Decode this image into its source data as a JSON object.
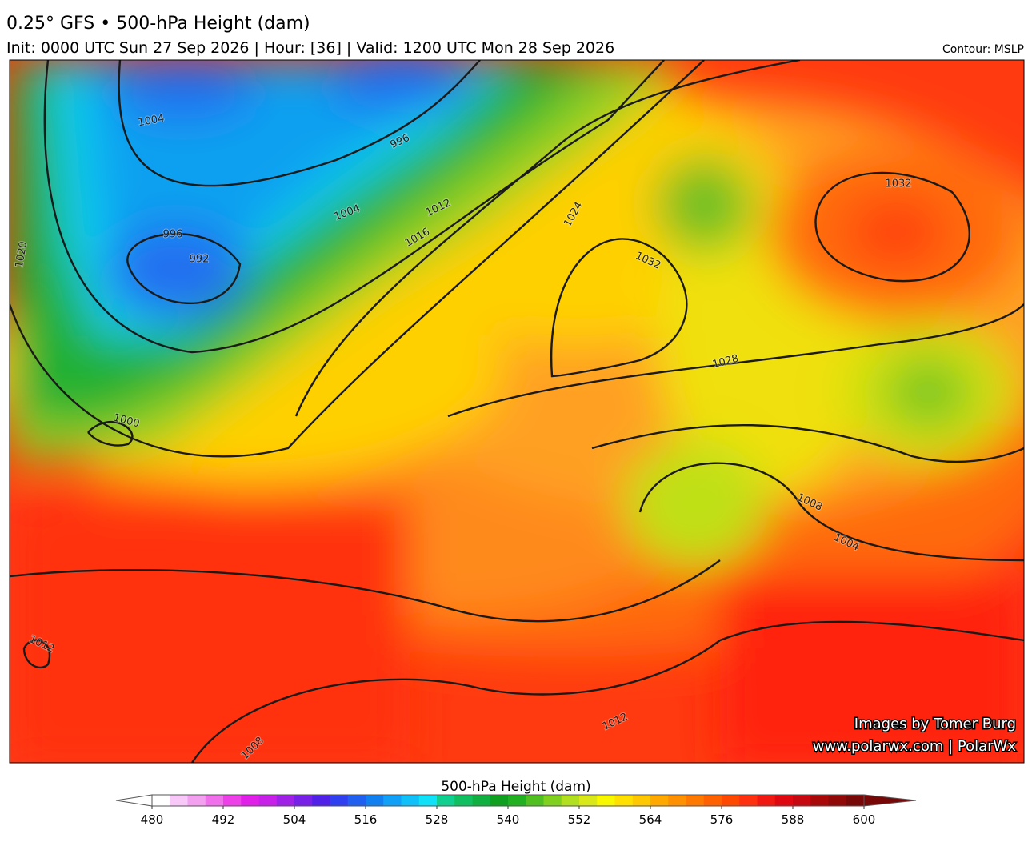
{
  "header": {
    "title": "0.25° GFS • 500-hPa Height (dam)",
    "subtitle": "Init: 0000 UTC Sun 27 Sep 2026 | Hour: [36] | Valid: 1200 UTC Mon 28 Sep 2026",
    "contour_note": "Contour: MSLP"
  },
  "map": {
    "contour_labels": [
      "1004",
      "996",
      "1004",
      "1012",
      "1016",
      "1024",
      "996",
      "992",
      "1032",
      "1032",
      "1028",
      "1020",
      "1000",
      "1008",
      "1004",
      "1012",
      "1012",
      "1008"
    ],
    "credits": [
      "Images by Tomer Burg",
      "www.polarwx.com | PolarWx"
    ]
  },
  "colorbar": {
    "title": "500-hPa Height (dam)",
    "ticks": [
      480,
      492,
      504,
      516,
      528,
      540,
      552,
      564,
      576,
      588,
      600
    ],
    "colors": [
      "#ffffff",
      "#f8c8f8",
      "#f4a0f0",
      "#f070ec",
      "#ee40e8",
      "#e020e8",
      "#c820e8",
      "#a020e8",
      "#7820e8",
      "#5020e8",
      "#3040f0",
      "#2060f0",
      "#1080f0",
      "#10a0f8",
      "#10c0f8",
      "#10e0f8",
      "#10d090",
      "#10c060",
      "#10b040",
      "#10a020",
      "#20b020",
      "#50c020",
      "#80d020",
      "#b0e020",
      "#d8e818",
      "#f8f800",
      "#ffe000",
      "#ffc800",
      "#ffa800",
      "#ff9000",
      "#ff7800",
      "#ff6000",
      "#ff4800",
      "#ff3010",
      "#f01810",
      "#e00810",
      "#c80810",
      "#a80808",
      "#900808",
      "#780808"
    ]
  }
}
